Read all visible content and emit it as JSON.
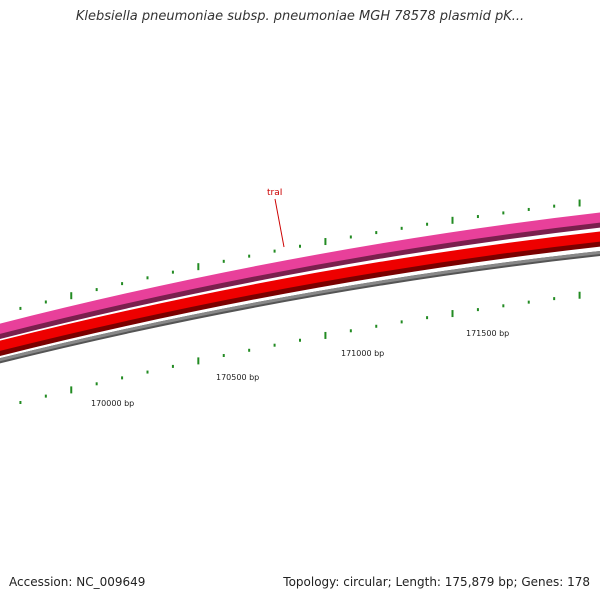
{
  "title": "Klebsiella pneumoniae subsp. pneumoniae MGH 78578 plasmid pK...",
  "footer": {
    "accession": "Accession: NC_009649",
    "summary": "Topology: circular; Length: 175,879 bp; Genes: 178"
  },
  "genes": [
    {
      "name": "traI",
      "color": "#cc0000"
    }
  ],
  "ruler": {
    "labels": [
      "170000 bp",
      "170500 bp",
      "171000 bp",
      "171500 bp"
    ],
    "tick_color": "#228B22"
  },
  "tracks": [
    {
      "name": "forward-strand-track",
      "color": "#e8409a"
    },
    {
      "name": "reverse-strand-track",
      "color": "#ee0000"
    },
    {
      "name": "backbone-track",
      "color": "#888888"
    }
  ]
}
